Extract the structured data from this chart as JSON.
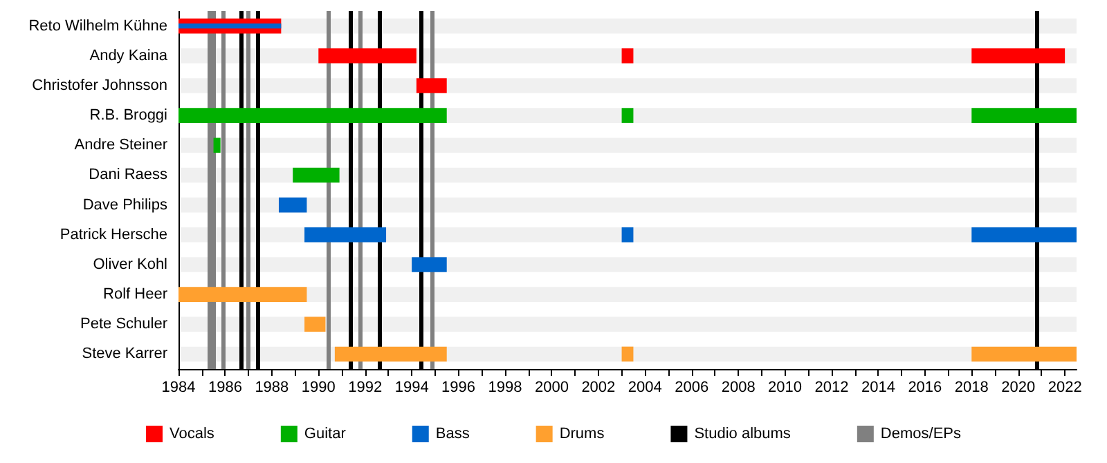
{
  "chart_data": {
    "type": "bar",
    "orientation": "horizontal",
    "categories": [
      "Reto Wilhelm Kühne",
      "Andy Kaina",
      "Christofer Johnsson",
      "R.B. Broggi",
      "Andre Steiner",
      "Dani Raess",
      "Dave Philips",
      "Patrick Hersche",
      "Oliver Kohl",
      "Rolf Heer",
      "Pete Schuler",
      "Steve Karrer"
    ],
    "series": [
      {
        "name": "Vocals",
        "color": "#ff0000",
        "base": [
          1984,
          1990,
          1994.2,
          null,
          null,
          null,
          null,
          null,
          null,
          null,
          null,
          null
        ],
        "values": [
          4.4,
          4.2,
          1.3,
          null,
          null,
          null,
          null,
          null,
          null,
          null,
          null,
          null
        ]
      },
      {
        "color": "#ff0000",
        "base": [
          null,
          2003,
          null,
          null,
          null,
          null,
          null,
          null,
          null,
          null,
          null,
          null
        ],
        "values": [
          null,
          0.5,
          null,
          null,
          null,
          null,
          null,
          null,
          null,
          null,
          null,
          null
        ]
      },
      {
        "color": "#ff0000",
        "base": [
          null,
          2018,
          null,
          null,
          null,
          null,
          null,
          null,
          null,
          null,
          null,
          null
        ],
        "values": [
          null,
          4.0,
          null,
          null,
          null,
          null,
          null,
          null,
          null,
          null,
          null,
          null
        ]
      },
      {
        "name": "Guitar",
        "color": "#00b000",
        "base": [
          null,
          null,
          null,
          1984,
          1985.5,
          1988.9,
          null,
          null,
          null,
          null,
          null,
          null
        ],
        "values": [
          null,
          null,
          null,
          11.5,
          0.3,
          2.0,
          null,
          null,
          null,
          null,
          null,
          null
        ]
      },
      {
        "color": "#00b000",
        "base": [
          null,
          null,
          null,
          2003,
          null,
          null,
          null,
          null,
          null,
          null,
          null,
          null
        ],
        "values": [
          null,
          null,
          null,
          0.5,
          null,
          null,
          null,
          null,
          null,
          null,
          null,
          null
        ]
      },
      {
        "color": "#00b000",
        "base": [
          null,
          null,
          null,
          2018,
          null,
          null,
          null,
          null,
          null,
          null,
          null,
          null
        ],
        "values": [
          null,
          null,
          null,
          4.5,
          null,
          null,
          null,
          null,
          null,
          null,
          null,
          null
        ]
      },
      {
        "name": "Bass",
        "color": "#0066cc",
        "base": [
          1984,
          null,
          null,
          null,
          null,
          null,
          1988.3,
          1989.4,
          1994.0,
          null,
          null,
          null
        ],
        "values": [
          4.4,
          null,
          null,
          null,
          null,
          null,
          1.2,
          3.5,
          1.5,
          null,
          null,
          null
        ]
      },
      {
        "color": "#0066cc",
        "base": [
          null,
          null,
          null,
          null,
          null,
          null,
          null,
          2003,
          null,
          null,
          null,
          null
        ],
        "values": [
          null,
          null,
          null,
          null,
          null,
          null,
          null,
          0.5,
          null,
          null,
          null,
          null
        ]
      },
      {
        "color": "#0066cc",
        "base": [
          null,
          null,
          null,
          null,
          null,
          null,
          null,
          2018,
          null,
          null,
          null,
          null
        ],
        "values": [
          null,
          null,
          null,
          null,
          null,
          null,
          null,
          4.5,
          null,
          null,
          null,
          null
        ]
      },
      {
        "name": "Drums",
        "color": "#ffa02f",
        "base": [
          null,
          null,
          null,
          null,
          null,
          null,
          null,
          null,
          null,
          1984,
          1989.4,
          1990.7
        ],
        "values": [
          null,
          null,
          null,
          null,
          null,
          null,
          null,
          null,
          null,
          5.5,
          0.9,
          4.8
        ]
      },
      {
        "color": "#ffa02f",
        "base": [
          null,
          null,
          null,
          null,
          null,
          null,
          null,
          null,
          null,
          null,
          null,
          2003
        ],
        "values": [
          null,
          null,
          null,
          null,
          null,
          null,
          null,
          null,
          null,
          null,
          null,
          0.5
        ]
      },
      {
        "color": "#ffa02f",
        "base": [
          null,
          null,
          null,
          null,
          null,
          null,
          null,
          null,
          null,
          null,
          null,
          2018
        ],
        "values": [
          null,
          null,
          null,
          null,
          null,
          null,
          null,
          null,
          null,
          null,
          null,
          4.5
        ]
      }
    ],
    "xlim": [
      1984,
      2022.5
    ],
    "xticks": [
      1984,
      {
        "value": 1985,
        "label": null
      },
      1986,
      {
        "value": 1987,
        "label": null
      },
      1988,
      {
        "value": 1989,
        "label": null
      },
      1990,
      {
        "value": 1991,
        "label": null
      },
      1992,
      {
        "value": 1993,
        "label": null
      },
      1994,
      {
        "value": 1995,
        "label": null
      },
      1996,
      {
        "value": 1997,
        "label": null
      },
      1998,
      {
        "value": 1999,
        "label": null
      },
      2000,
      {
        "value": 2001,
        "label": null
      },
      2002,
      {
        "value": 2003,
        "label": null
      },
      2004,
      {
        "value": 2005,
        "label": null
      },
      2006,
      {
        "value": 2007,
        "label": null
      },
      2008,
      {
        "value": 2009,
        "label": null
      },
      2010,
      {
        "value": 2011,
        "label": null
      },
      2012,
      {
        "value": 2013,
        "label": null
      },
      2014,
      {
        "value": 2015,
        "label": null
      },
      2016,
      {
        "value": 2017,
        "label": null
      },
      2018,
      {
        "value": 2019,
        "label": null
      },
      2020,
      {
        "value": 2021,
        "label": null
      },
      2022
    ],
    "ref_lines": [
      {
        "axis": "x",
        "value": 1986.7,
        "label": "Studio albums",
        "color": "#000000"
      },
      {
        "axis": "x",
        "value": 1987.4,
        "color": "#000000"
      },
      {
        "axis": "x",
        "value": 1991.4,
        "color": "#000000"
      },
      {
        "axis": "x",
        "value": 1992.6,
        "color": "#000000"
      },
      {
        "axis": "x",
        "value": 1994.4,
        "color": "#000000"
      },
      {
        "axis": "x",
        "value": 2020.8,
        "color": "#000000"
      },
      {
        "axis": "x",
        "value": 1985.3,
        "label": "Demos/EPs",
        "color": "#808080"
      },
      {
        "axis": "x",
        "value": 1985.5,
        "color": "#808080"
      },
      {
        "axis": "x",
        "value": 1985.9,
        "color": "#808080"
      },
      {
        "axis": "x",
        "value": 1987.0,
        "color": "#808080"
      },
      {
        "axis": "x",
        "value": 1990.4,
        "color": "#808080"
      },
      {
        "axis": "x",
        "value": 1991.8,
        "color": "#808080"
      },
      {
        "axis": "x",
        "value": 1994.9,
        "color": "#808080"
      }
    ],
    "legend": "bottom"
  }
}
